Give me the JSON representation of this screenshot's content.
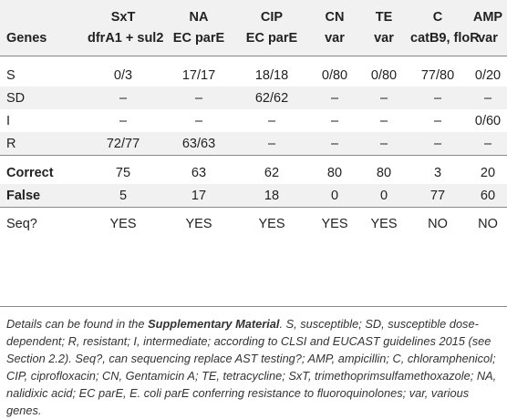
{
  "table": {
    "header_row1": [
      "",
      "SxT",
      "NA",
      "CIP",
      "CN",
      "TE",
      "C",
      "AMP"
    ],
    "header_row2": [
      "Genes",
      "dfrA1 + sul2",
      "EC parE",
      "EC parE",
      "var",
      "var",
      "catB9, floR",
      "var"
    ],
    "rows": [
      [
        "S",
        "0/3",
        "17/17",
        "18/18",
        "0/80",
        "0/80",
        "77/80",
        "0/20"
      ],
      [
        "SD",
        "–",
        "–",
        "62/62",
        "–",
        "–",
        "–",
        "–"
      ],
      [
        "I",
        "–",
        "–",
        "–",
        "–",
        "–",
        "–",
        "0/60"
      ],
      [
        "R",
        "72/77",
        "63/63",
        "–",
        "–",
        "–",
        "–",
        "–"
      ]
    ],
    "correct": [
      "Correct",
      "75",
      "63",
      "62",
      "80",
      "80",
      "3",
      "20"
    ],
    "false_row": [
      "False",
      "5",
      "17",
      "18",
      "0",
      "0",
      "77",
      "60"
    ],
    "seq": [
      "Seq?",
      "YES",
      "YES",
      "YES",
      "YES",
      "YES",
      "NO",
      "NO"
    ]
  },
  "footnote": {
    "part1": "Details can be found in the ",
    "bold": "Supplementary Material",
    "part2": ". S, susceptible; SD, susceptible dose-dependent; R, resistant; I, intermediate; according to CLSI and EUCAST guidelines 2015 (see Section 2.2). Seq?, can sequencing replace AST testing?; AMP, ampicillin; C, chloramphenicol; CIP, ciprofloxacin; CN, Gentamicin A; TE, tetracycline; SxT, trimethoprimsulfamethoxazole; NA, nalidixic acid; EC parE, E. coli parE conferring resistance to fluoroquinolones; var, various genes."
  }
}
